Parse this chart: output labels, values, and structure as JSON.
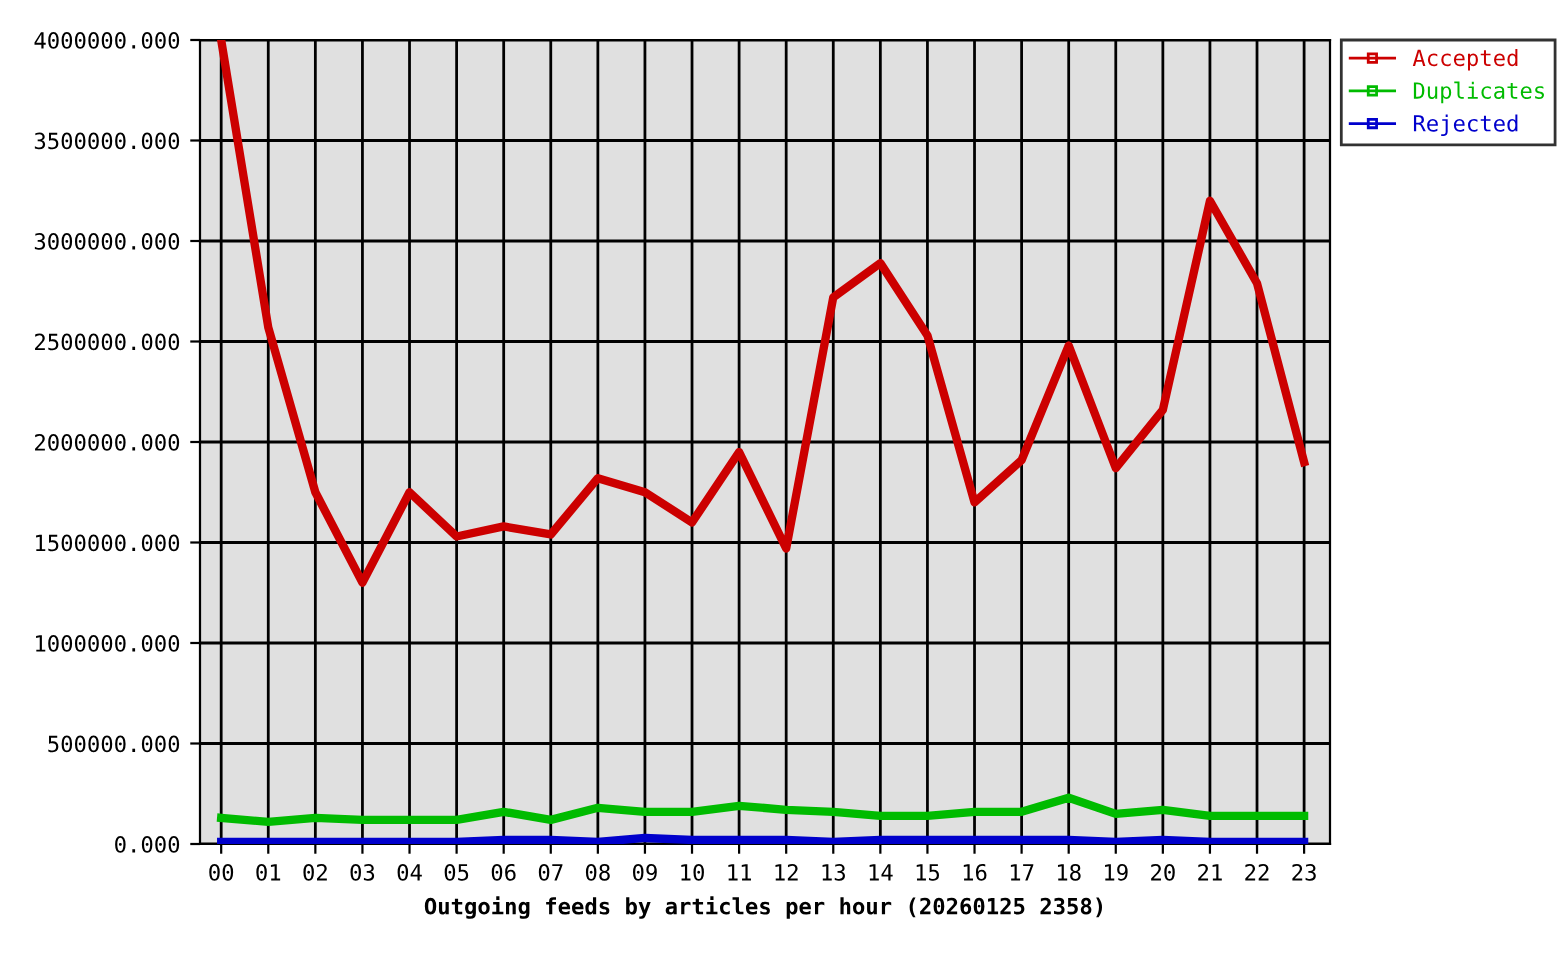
{
  "chart_data": {
    "type": "line",
    "xlabel": "Outgoing feeds by articles per hour (20260125 2358)",
    "categories": [
      "00",
      "01",
      "02",
      "03",
      "04",
      "05",
      "06",
      "07",
      "08",
      "09",
      "10",
      "11",
      "12",
      "13",
      "14",
      "15",
      "16",
      "17",
      "18",
      "19",
      "20",
      "21",
      "22",
      "23"
    ],
    "series": [
      {
        "name": "Accepted",
        "color": "#cc0000",
        "values": [
          4000000,
          2570000,
          1750000,
          1300000,
          1750000,
          1530000,
          1580000,
          1540000,
          1820000,
          1750000,
          1600000,
          1950000,
          1470000,
          2720000,
          2890000,
          2530000,
          1700000,
          1910000,
          2480000,
          1870000,
          2160000,
          3200000,
          2790000,
          1900000
        ]
      },
      {
        "name": "Duplicates",
        "color": "#00bb00",
        "values": [
          130000,
          110000,
          130000,
          120000,
          120000,
          120000,
          160000,
          120000,
          180000,
          160000,
          160000,
          190000,
          170000,
          160000,
          140000,
          140000,
          160000,
          160000,
          230000,
          150000,
          170000,
          140000,
          140000,
          140000
        ]
      },
      {
        "name": "Rejected",
        "color": "#0000cc",
        "values": [
          10000,
          10000,
          10000,
          10000,
          10000,
          10000,
          20000,
          20000,
          10000,
          30000,
          20000,
          20000,
          20000,
          10000,
          20000,
          20000,
          20000,
          20000,
          20000,
          10000,
          20000,
          10000,
          10000,
          10000
        ]
      }
    ],
    "ylim": [
      0,
      4000000
    ],
    "yticks": [
      {
        "value": 0,
        "label": "0.000"
      },
      {
        "value": 500000,
        "label": "500000.000"
      },
      {
        "value": 1000000,
        "label": "1000000.000"
      },
      {
        "value": 1500000,
        "label": "1500000.000"
      },
      {
        "value": 2000000,
        "label": "2000000.000"
      },
      {
        "value": 2500000,
        "label": "2500000.000"
      },
      {
        "value": 3000000,
        "label": "3000000.000"
      },
      {
        "value": 3500000,
        "label": "3500000.000"
      },
      {
        "value": 4000000,
        "label": "4000000.000"
      }
    ],
    "grid": true,
    "legend": "top right",
    "marker": "none",
    "line_style": "solid"
  }
}
